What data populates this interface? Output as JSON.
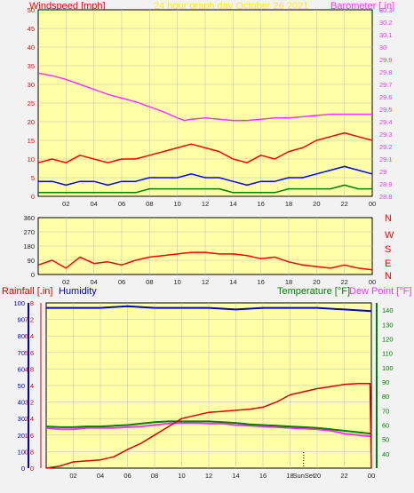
{
  "header": {
    "title": "24 hour graph day   October 26 2021",
    "wind_label": "Windspeed [mph]",
    "baro_label": "Barometer [.in]",
    "rain_label": "Rainfall [.in]",
    "humidity_label": "Humidity",
    "temp_label": "Temperature [°F]",
    "dew_label": "Dew Point [°F]"
  },
  "compass_letters": [
    "N",
    "W",
    "S",
    "E",
    "N"
  ],
  "sun_label": "SunSet",
  "colors": {
    "plot_bg": "#ffffa8",
    "wind_avg": "#0000ff",
    "wind_gust": "#ff0000",
    "wind_low": "#008000",
    "barometer": "#ff33ff",
    "direction": "#ff0000",
    "rain": "#dd0000",
    "humidity": "#0000cc",
    "temperature": "#008000",
    "dew_point": "#ff33ff"
  },
  "chart_data": [
    {
      "type": "line",
      "panel": "wind-barometer",
      "x_ticks": [
        "02",
        "04",
        "06",
        "08",
        "10",
        "12",
        "14",
        "16",
        "18",
        "20",
        "22",
        "00"
      ],
      "y_left": {
        "label": "Windspeed [mph]",
        "ylim": [
          0,
          50
        ],
        "ticks": [
          "0",
          "5",
          "10",
          "15",
          "20",
          "25",
          "30",
          "35",
          "40",
          "45",
          "50"
        ]
      },
      "y_right": {
        "label": "Barometer [.in]",
        "ylim": [
          28.8,
          30.3
        ],
        "ticks": [
          "28.8",
          "28.9",
          "29",
          "29.1",
          "29.2",
          "29.3",
          "29.4",
          "29.5",
          "29.6",
          "29.7",
          "29.8",
          "29.9",
          "30",
          "30.1",
          "30.2",
          "30.3"
        ]
      },
      "series": [
        {
          "name": "Barometer [.in]",
          "axis": "right",
          "x": [
            0,
            1,
            2,
            3,
            4,
            5,
            6,
            7,
            8,
            9,
            10,
            10.5,
            11,
            12,
            13,
            14,
            15,
            16,
            17,
            18,
            19,
            20,
            21,
            22,
            23,
            24
          ],
          "values": [
            29.79,
            29.77,
            29.74,
            29.7,
            29.66,
            29.62,
            29.59,
            29.56,
            29.52,
            29.48,
            29.43,
            29.41,
            29.42,
            29.43,
            29.42,
            29.41,
            29.41,
            29.42,
            29.43,
            29.43,
            29.44,
            29.45,
            29.46,
            29.46,
            29.46,
            29.46
          ]
        },
        {
          "axis": "left",
          "x": [
            0,
            1,
            2,
            3,
            4,
            5,
            6,
            7,
            8,
            9,
            10,
            11,
            12,
            13,
            14,
            15,
            16,
            17,
            18,
            19,
            20,
            21,
            22,
            23,
            24
          ],
          "values": [
            9,
            10,
            9,
            11,
            10,
            9,
            10,
            10,
            11,
            12,
            13,
            14,
            13,
            12,
            10,
            9,
            11,
            10,
            12,
            13,
            15,
            16,
            17,
            16,
            15
          ]
        },
        {
          "axis": "left",
          "x": [
            0,
            1,
            2,
            3,
            4,
            5,
            6,
            7,
            8,
            9,
            10,
            11,
            12,
            13,
            14,
            15,
            16,
            17,
            18,
            19,
            20,
            21,
            22,
            23,
            24
          ],
          "values": [
            4,
            4,
            3,
            4,
            4,
            3,
            4,
            4,
            5,
            5,
            5,
            6,
            5,
            5,
            4,
            3,
            4,
            4,
            5,
            5,
            6,
            7,
            8,
            7,
            6
          ]
        },
        {
          "axis": "left",
          "x": [
            0,
            1,
            2,
            3,
            4,
            5,
            6,
            7,
            8,
            9,
            10,
            11,
            12,
            13,
            14,
            15,
            16,
            17,
            18,
            19,
            20,
            21,
            22,
            23,
            24
          ],
          "values": [
            1,
            1,
            1,
            1,
            1,
            1,
            1,
            1,
            2,
            2,
            2,
            2,
            2,
            2,
            1,
            1,
            1,
            1,
            2,
            2,
            2,
            2,
            3,
            2,
            2
          ]
        }
      ]
    },
    {
      "type": "line",
      "panel": "wind-direction",
      "x_ticks": [
        "02",
        "04",
        "06",
        "08",
        "10",
        "12",
        "14",
        "16",
        "18",
        "20",
        "22",
        "00"
      ],
      "y_left": {
        "ylim": [
          0,
          360
        ],
        "ticks": [
          "0",
          "90",
          "180",
          "270",
          "360"
        ]
      },
      "y_right": {
        "ticks": [
          "N",
          "W",
          "S",
          "E",
          "N"
        ]
      },
      "series": [
        {
          "axis": "left",
          "x": [
            0,
            1,
            2,
            3,
            4,
            5,
            6,
            7,
            8,
            9,
            10,
            11,
            12,
            13,
            14,
            15,
            16,
            17,
            18,
            19,
            20,
            21,
            22,
            23,
            24
          ],
          "values": [
            60,
            90,
            40,
            110,
            70,
            80,
            60,
            90,
            110,
            120,
            130,
            140,
            140,
            130,
            130,
            120,
            100,
            110,
            80,
            60,
            50,
            40,
            60,
            40,
            30
          ]
        }
      ]
    },
    {
      "type": "line",
      "panel": "rain-temperature",
      "x_ticks": [
        "02",
        "04",
        "06",
        "08",
        "10",
        "12",
        "14",
        "16",
        "18",
        "20",
        "22",
        "00"
      ],
      "y_left": {
        "label": "Rainfall [.in]",
        "ylim": [
          0,
          8
        ],
        "ticks": [
          "0",
          "0.8",
          "1.6",
          "2.4",
          "3.2",
          "4",
          "4.8",
          "5.6",
          "6.4",
          "7.2",
          "8"
        ]
      },
      "y_left_outer": {
        "label": "Humidity",
        "ylim": [
          0,
          100
        ],
        "ticks": [
          "0",
          "10",
          "20",
          "30",
          "40",
          "50",
          "60",
          "70",
          "80",
          "90",
          "100"
        ]
      },
      "y_right": {
        "label": "Temperature [°F]",
        "ylim": [
          30,
          145
        ],
        "ticks": [
          "40",
          "50",
          "60",
          "70",
          "80",
          "90",
          "100",
          "110",
          "120",
          "130",
          "140"
        ]
      },
      "series": [
        {
          "name": "Rainfall [.in]",
          "axis": "left",
          "x": [
            0,
            1,
            2,
            3,
            4,
            5,
            6,
            7,
            8,
            9,
            10,
            11,
            12,
            13,
            14,
            15,
            16,
            17,
            18,
            19,
            20,
            21,
            22,
            23,
            23.9,
            24
          ],
          "values": [
            0.0,
            0.1,
            0.3,
            0.35,
            0.4,
            0.55,
            0.9,
            1.2,
            1.6,
            2.0,
            2.4,
            2.55,
            2.7,
            2.75,
            2.8,
            2.85,
            2.95,
            3.2,
            3.55,
            3.7,
            3.85,
            3.95,
            4.05,
            4.1,
            4.1,
            0.0
          ]
        },
        {
          "name": "Humidity",
          "axis": "left_outer",
          "x": [
            0,
            2,
            4,
            6,
            8,
            10,
            12,
            14,
            16,
            18,
            20,
            22,
            24
          ],
          "values": [
            97,
            97,
            97,
            98,
            97,
            97,
            97,
            96,
            97,
            97,
            97,
            96,
            95
          ]
        },
        {
          "name": "Temperature [°F]",
          "axis": "right",
          "x": [
            0,
            1,
            2,
            3,
            4,
            5,
            6,
            7,
            8,
            9,
            10,
            11,
            12,
            13,
            14,
            15,
            16,
            17,
            18,
            19,
            20,
            21,
            22,
            23,
            24
          ],
          "values": [
            59,
            58.5,
            58.5,
            59,
            59,
            59.5,
            60,
            61,
            62,
            62.5,
            62.5,
            62.5,
            62.5,
            62,
            61.5,
            60.5,
            60,
            59.5,
            59,
            58.5,
            58,
            57,
            56,
            55,
            54
          ]
        },
        {
          "name": "Dew Point [°F]",
          "axis": "right",
          "x": [
            0,
            1,
            2,
            3,
            4,
            5,
            6,
            7,
            8,
            9,
            10,
            11,
            12,
            13,
            14,
            15,
            16,
            17,
            18,
            19,
            20,
            21,
            22,
            23,
            24
          ],
          "values": [
            58,
            57,
            57,
            58,
            58,
            58,
            58.5,
            59,
            60,
            61,
            61.5,
            61.5,
            61,
            61,
            60,
            59.5,
            59,
            58.5,
            58,
            57.5,
            57,
            56,
            54,
            53,
            52
          ]
        }
      ]
    }
  ]
}
